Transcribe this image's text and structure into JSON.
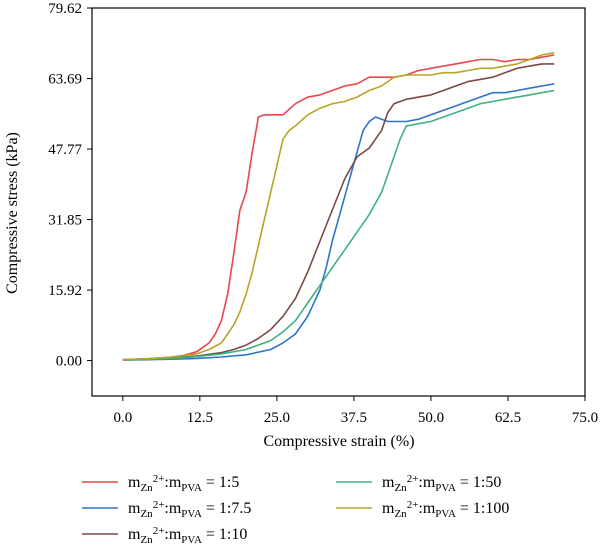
{
  "chart_data": {
    "type": "line",
    "title": "",
    "xlabel": "Compressive strain (%)",
    "ylabel": "Compressive stress (kPa)",
    "xlim": [
      -5,
      75
    ],
    "ylim": [
      -8,
      79.62
    ],
    "xticks": [
      0,
      12.5,
      25,
      37.5,
      50,
      62.5,
      75
    ],
    "xtick_labels": [
      "0.0",
      "12.5",
      "25.0",
      "37.5",
      "50.0",
      "62.5",
      "75.0"
    ],
    "yticks": [
      0,
      15.92,
      31.85,
      47.77,
      63.69,
      79.62
    ],
    "ytick_labels": [
      "0.00",
      "15.92",
      "31.85",
      "47.77",
      "63.69",
      "79.62"
    ],
    "grid": false,
    "legend_position": "bottom",
    "series": [
      {
        "label": {
          "prefix": "m",
          "sub1": "Zn",
          "sup": "2+",
          "mid": ":m",
          "sub2": "PVA",
          "ratio": " = 1:5"
        },
        "color": "#e8474c",
        "x": [
          0,
          2,
          4,
          6,
          8,
          10,
          12,
          14,
          15,
          16,
          17,
          18,
          19,
          20,
          21,
          22,
          23,
          24,
          25,
          26,
          28,
          30,
          32,
          34,
          36,
          38,
          40,
          42,
          44,
          46,
          48,
          50,
          52,
          54,
          56,
          58,
          60,
          62,
          64,
          66,
          68,
          70
        ],
        "y": [
          0.2,
          0.3,
          0.4,
          0.6,
          0.8,
          1.2,
          2,
          4,
          6,
          9,
          15,
          24,
          34,
          38,
          47,
          55,
          55.5,
          55.5,
          55.5,
          55.5,
          58,
          59.5,
          60,
          61,
          62,
          62.5,
          64,
          64,
          64,
          64.5,
          65.5,
          66,
          66.5,
          67,
          67.5,
          68,
          68,
          67.5,
          68,
          68,
          68.5,
          69
        ]
      },
      {
        "label": {
          "prefix": "m",
          "sub1": "Zn",
          "sup": "2+",
          "mid": ":m",
          "sub2": "PVA",
          "ratio": " = 1:7.5"
        },
        "color": "#2f74c8",
        "x": [
          0,
          4,
          8,
          12,
          16,
          20,
          24,
          26,
          28,
          30,
          32,
          33,
          34,
          35,
          36,
          37,
          38,
          39,
          40,
          41,
          42,
          43,
          44,
          46,
          48,
          50,
          52,
          54,
          56,
          58,
          60,
          62,
          64,
          66,
          68,
          70
        ],
        "y": [
          0.1,
          0.2,
          0.3,
          0.5,
          0.8,
          1.3,
          2.5,
          4,
          6,
          10,
          16,
          21,
          27,
          32,
          37,
          42,
          47,
          52,
          54,
          55,
          54.5,
          54,
          54,
          54,
          54.5,
          55.5,
          56.5,
          57.5,
          58.5,
          59.5,
          60.5,
          60.5,
          61,
          61.5,
          62,
          62.5
        ]
      },
      {
        "label": {
          "prefix": "m",
          "sub1": "Zn",
          "sup": "2+",
          "mid": ":m",
          "sub2": "PVA",
          "ratio": " = 1:10"
        },
        "color": "#7a4a44",
        "x": [
          0,
          4,
          8,
          12,
          16,
          18,
          20,
          22,
          24,
          26,
          28,
          30,
          32,
          34,
          36,
          38,
          40,
          42,
          43,
          44,
          46,
          48,
          50,
          52,
          54,
          56,
          58,
          60,
          62,
          64,
          66,
          68,
          70
        ],
        "y": [
          0.2,
          0.4,
          0.6,
          1,
          1.8,
          2.5,
          3.5,
          5,
          7,
          10,
          14,
          20,
          27,
          34,
          41,
          46,
          48,
          52,
          56,
          58,
          59,
          59.5,
          60,
          61,
          62,
          63,
          63.5,
          64,
          65,
          66,
          66.5,
          67,
          67
        ]
      },
      {
        "label": {
          "prefix": "m",
          "sub1": "Zn",
          "sup": "2+",
          "mid": ":m",
          "sub2": "PVA",
          "ratio": " = 1:50"
        },
        "color": "#3fb27f",
        "x": [
          0,
          4,
          8,
          12,
          16,
          20,
          24,
          26,
          28,
          30,
          32,
          34,
          36,
          38,
          40,
          42,
          43,
          44,
          45,
          46,
          48,
          50,
          52,
          54,
          56,
          58,
          60,
          62,
          64,
          66,
          68,
          70
        ],
        "y": [
          0.1,
          0.3,
          0.5,
          0.9,
          1.5,
          2.5,
          4.5,
          6.5,
          9,
          13,
          17,
          21,
          25,
          29,
          33,
          38,
          42,
          46,
          50,
          53,
          53.5,
          54,
          55,
          56,
          57,
          58,
          58.5,
          59,
          59.5,
          60,
          60.5,
          61
        ]
      },
      {
        "label": {
          "prefix": "m",
          "sub1": "Zn",
          "sup": "2+",
          "mid": ":m",
          "sub2": "PVA",
          "ratio": " = 1:100"
        },
        "color": "#b5a626",
        "x": [
          0,
          4,
          8,
          12,
          14,
          16,
          17,
          18,
          19,
          20,
          21,
          22,
          23,
          24,
          25,
          26,
          27,
          28,
          30,
          32,
          34,
          36,
          38,
          40,
          42,
          43,
          44,
          46,
          48,
          50,
          52,
          54,
          56,
          58,
          60,
          62,
          64,
          66,
          68,
          70
        ],
        "y": [
          0.2,
          0.4,
          0.8,
          1.5,
          2.5,
          4,
          6,
          8,
          11,
          15,
          20,
          26,
          32,
          38,
          44,
          50,
          52,
          53,
          55.5,
          57,
          58,
          58.5,
          59.5,
          61,
          62,
          63,
          64,
          64.5,
          64.5,
          64.5,
          65,
          65,
          65.5,
          66,
          66,
          66.5,
          67,
          68,
          69,
          69.5
        ]
      }
    ]
  }
}
